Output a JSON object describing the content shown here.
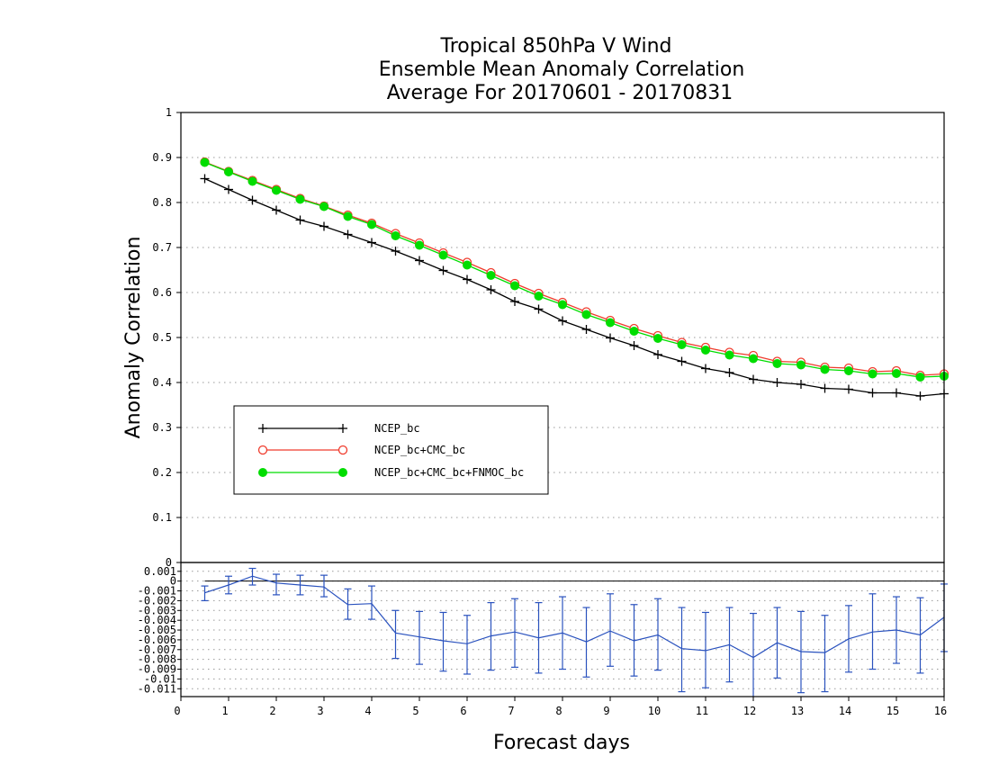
{
  "chart_data": [
    {
      "type": "line",
      "title": [
        "Tropical 850hPa V Wind",
        "Ensemble Mean Anomaly Correlation",
        "Average For 20170601 - 20170831"
      ],
      "ylabel": "Anomaly Correlation",
      "ylim": [
        0,
        1
      ],
      "xlim": [
        0,
        16
      ],
      "yticks": [
        "0",
        "0.1",
        "0.2",
        "0.3",
        "0.4",
        "0.5",
        "0.6",
        "0.7",
        "0.8",
        "0.9",
        "1"
      ],
      "grid": "horizontal dotted",
      "legend_position": "lower-left",
      "x": [
        0.5,
        1,
        1.5,
        2,
        2.5,
        3,
        3.5,
        4,
        4.5,
        5,
        5.5,
        6,
        6.5,
        7,
        7.5,
        8,
        8.5,
        9,
        9.5,
        10,
        10.5,
        11,
        11.5,
        12,
        12.5,
        13,
        13.5,
        14,
        14.5,
        15,
        15.5,
        16
      ],
      "series": [
        {
          "name": "NCEP_bc",
          "color": "#000000",
          "marker": "plus",
          "values": [
            0.853,
            0.829,
            0.805,
            0.783,
            0.761,
            0.747,
            0.729,
            0.711,
            0.692,
            0.671,
            0.649,
            0.629,
            0.606,
            0.58,
            0.563,
            0.537,
            0.518,
            0.499,
            0.482,
            0.462,
            0.447,
            0.431,
            0.422,
            0.407,
            0.4,
            0.396,
            0.387,
            0.385,
            0.377,
            0.377,
            0.37,
            0.375
          ]
        },
        {
          "name": "NCEP_bc+CMC_bc",
          "color": "#ef3b2c",
          "marker": "open-circle",
          "values": [
            0.89,
            0.869,
            0.849,
            0.829,
            0.809,
            0.792,
            0.772,
            0.754,
            0.731,
            0.71,
            0.688,
            0.667,
            0.644,
            0.62,
            0.598,
            0.578,
            0.557,
            0.538,
            0.52,
            0.504,
            0.489,
            0.478,
            0.467,
            0.46,
            0.447,
            0.445,
            0.434,
            0.432,
            0.424,
            0.426,
            0.416,
            0.419
          ]
        },
        {
          "name": "NCEP_bc+CMC_bc+FNMOC_bc",
          "color": "#00dd00",
          "marker": "filled-circle",
          "values": [
            0.889,
            0.868,
            0.847,
            0.827,
            0.807,
            0.791,
            0.769,
            0.751,
            0.726,
            0.705,
            0.683,
            0.661,
            0.638,
            0.615,
            0.592,
            0.573,
            0.551,
            0.533,
            0.514,
            0.498,
            0.484,
            0.472,
            0.461,
            0.453,
            0.442,
            0.439,
            0.429,
            0.426,
            0.419,
            0.42,
            0.412,
            0.414
          ]
        }
      ]
    },
    {
      "type": "line",
      "subtype": "difference-with-errorbars",
      "ylim": [
        -0.0118,
        0.0019
      ],
      "yticks": [
        "0.001",
        "0",
        "-0.001",
        "-0.002",
        "-0.003",
        "-0.004",
        "-0.005",
        "-0.006",
        "-0.007",
        "-0.008",
        "-0.009",
        "-0.01",
        "-0.011"
      ],
      "ytick_values": [
        0.001,
        0,
        -0.001,
        -0.002,
        -0.003,
        -0.004,
        -0.005,
        -0.006,
        -0.007,
        -0.008,
        -0.009,
        -0.01,
        -0.011
      ],
      "xlabel": "Forecast days",
      "xlim": [
        0,
        16
      ],
      "xticks": [
        "0",
        "1",
        "2",
        "3",
        "4",
        "5",
        "6",
        "7",
        "8",
        "9",
        "10",
        "11",
        "12",
        "13",
        "14",
        "15",
        "16"
      ],
      "reference_line": 0,
      "color": "#2a52be",
      "x": [
        0.5,
        1,
        1.5,
        2,
        2.5,
        3,
        3.5,
        4,
        4.5,
        5,
        5.5,
        6,
        6.5,
        7,
        7.5,
        8,
        8.5,
        9,
        9.5,
        10,
        10.5,
        11,
        11.5,
        12,
        12.5,
        13,
        13.5,
        14,
        14.5,
        15,
        15.5,
        16
      ],
      "values": [
        -0.0012,
        -0.0004,
        0.0005,
        -0.0002,
        -0.0004,
        -0.0006,
        -0.0024,
        -0.0023,
        -0.0053,
        -0.0057,
        -0.0061,
        -0.0064,
        -0.0056,
        -0.0052,
        -0.0058,
        -0.0053,
        -0.0062,
        -0.0051,
        -0.0061,
        -0.0055,
        -0.0069,
        -0.0071,
        -0.0065,
        -0.0078,
        -0.0063,
        -0.0072,
        -0.0073,
        -0.0059,
        -0.0052,
        -0.005,
        -0.0055,
        -0.0037
      ],
      "error_low": [
        -0.002,
        -0.0013,
        -0.0004,
        -0.0014,
        -0.0014,
        -0.0016,
        -0.0039,
        -0.0039,
        -0.0079,
        -0.0085,
        -0.0092,
        -0.0095,
        -0.0091,
        -0.0088,
        -0.0094,
        -0.009,
        -0.0098,
        -0.0087,
        -0.0097,
        -0.0091,
        -0.0113,
        -0.0109,
        -0.0103,
        -0.0121,
        -0.0099,
        -0.0114,
        -0.0113,
        -0.0093,
        -0.009,
        -0.0084,
        -0.0094,
        -0.0072
      ],
      "error_high": [
        -0.0005,
        0.0005,
        0.0013,
        0.0007,
        0.0006,
        0.0006,
        -0.0008,
        -0.0005,
        -0.003,
        -0.0031,
        -0.0032,
        -0.0035,
        -0.0022,
        -0.0018,
        -0.0022,
        -0.0016,
        -0.0027,
        -0.0013,
        -0.0024,
        -0.0018,
        -0.0027,
        -0.0032,
        -0.0027,
        -0.0033,
        -0.0027,
        -0.0031,
        -0.0035,
        -0.0025,
        -0.0013,
        -0.0016,
        -0.0017,
        -0.0003
      ]
    }
  ]
}
